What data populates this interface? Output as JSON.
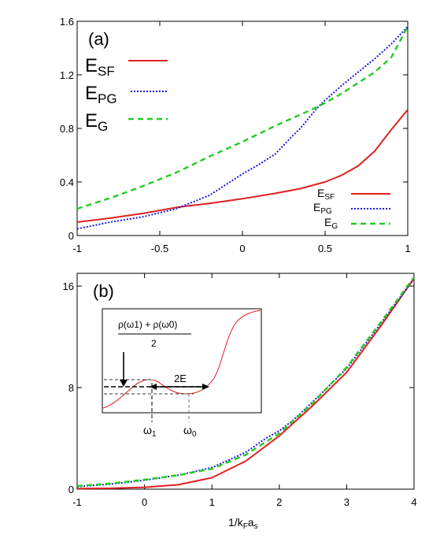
{
  "chart_data": [
    {
      "type": "line",
      "panel_label": "(a)",
      "xlabel": "",
      "ylabel": "",
      "xlim": [
        -1,
        1
      ],
      "ylim": [
        0,
        1.6
      ],
      "xticks": [
        "-1",
        "-0.5",
        "0",
        "0.5",
        "1"
      ],
      "yticks": [
        "0",
        "0.4",
        "0.8",
        "1.2",
        "1.6"
      ],
      "big_legend": [
        {
          "main": "E",
          "sub": "SF",
          "color": "#e02020",
          "style": "solid"
        },
        {
          "main": "E",
          "sub": "PG",
          "color": "#1a1adc",
          "style": "dotted"
        },
        {
          "main": "E",
          "sub": "G",
          "color": "#22cc22",
          "style": "dashed"
        }
      ],
      "small_legend": [
        {
          "main": "E",
          "sub": "SF",
          "color": "#e02020",
          "style": "solid"
        },
        {
          "main": "E",
          "sub": "PG",
          "color": "#1a1adc",
          "style": "dotted"
        },
        {
          "main": "E",
          "sub": "G",
          "color": "#22cc22",
          "style": "dashed"
        }
      ],
      "series": [
        {
          "key": "SF",
          "color": "#e02020",
          "style": "solid",
          "x": [
            -1,
            -0.8,
            -0.6,
            -0.4,
            -0.2,
            0,
            0.2,
            0.35,
            0.5,
            0.6,
            0.7,
            0.8,
            0.9,
            1.0
          ],
          "y": [
            0.1,
            0.13,
            0.165,
            0.21,
            0.24,
            0.275,
            0.315,
            0.35,
            0.4,
            0.45,
            0.52,
            0.63,
            0.79,
            0.94
          ]
        },
        {
          "key": "PG",
          "color": "#1a1adc",
          "style": "dotted",
          "x": [
            -1,
            -0.8,
            -0.6,
            -0.4,
            -0.3,
            -0.2,
            -0.1,
            0,
            0.1,
            0.2,
            0.3,
            0.35,
            0.45,
            0.5,
            0.6,
            0.7,
            0.8,
            0.9,
            1.0
          ],
          "y": [
            0.05,
            0.1,
            0.14,
            0.2,
            0.25,
            0.3,
            0.38,
            0.46,
            0.53,
            0.61,
            0.74,
            0.8,
            0.95,
            1.01,
            1.12,
            1.22,
            1.32,
            1.43,
            1.56
          ]
        },
        {
          "key": "G",
          "color": "#22cc22",
          "style": "dashed",
          "x": [
            -1,
            -0.8,
            -0.6,
            -0.4,
            -0.2,
            0,
            0.2,
            0.4,
            0.5,
            0.6,
            0.8,
            0.9,
            1.0
          ],
          "y": [
            0.2,
            0.28,
            0.37,
            0.47,
            0.59,
            0.7,
            0.82,
            0.93,
            0.99,
            1.06,
            1.22,
            1.33,
            1.56
          ]
        }
      ]
    },
    {
      "type": "line",
      "panel_label": "(b)",
      "xlabel": "1/k",
      "xlabel_sub1": "F",
      "xlabel_mid": "a",
      "xlabel_sub2": "s",
      "ylabel": "",
      "xlim": [
        -1,
        4
      ],
      "ylim": [
        0,
        17
      ],
      "xticks": [
        "-1",
        "0",
        "1",
        "2",
        "3",
        "4"
      ],
      "yticks": [
        "0",
        "8",
        "16"
      ],
      "series": [
        {
          "key": "SF",
          "color": "#e02020",
          "style": "solid",
          "x": [
            -1,
            -0.5,
            0,
            0.5,
            1,
            1.5,
            2,
            2.5,
            3,
            3.5,
            4
          ],
          "y": [
            0.05,
            0.07,
            0.15,
            0.35,
            0.9,
            2.2,
            4.2,
            6.6,
            9.2,
            12.8,
            16.6
          ]
        },
        {
          "key": "PG",
          "color": "#1a1adc",
          "style": "dotted",
          "x": [
            -1,
            -0.5,
            0,
            0.5,
            1,
            1.5,
            1.8,
            2.0,
            2.2,
            2.5,
            3,
            3.5,
            4
          ],
          "y": [
            0.2,
            0.4,
            0.7,
            1.1,
            1.7,
            2.9,
            4.0,
            4.6,
            5.4,
            6.9,
            9.5,
            13.0,
            16.6
          ]
        },
        {
          "key": "G",
          "color": "#22cc22",
          "style": "dashed",
          "x": [
            -1,
            -0.5,
            0,
            0.5,
            1,
            1.5,
            2,
            2.5,
            3,
            3.5,
            4
          ],
          "y": [
            0.25,
            0.45,
            0.75,
            1.1,
            1.6,
            2.7,
            4.4,
            6.8,
            9.6,
            13.1,
            16.7
          ]
        }
      ],
      "inset": {
        "formula": "ρ(ω1) + ρ(ω0)",
        "formula_denominator": "2",
        "span_label": "2E",
        "omega1_label": "ω",
        "omega1_sub": "1",
        "omega0_label": "ω",
        "omega0_sub": "0"
      }
    }
  ]
}
